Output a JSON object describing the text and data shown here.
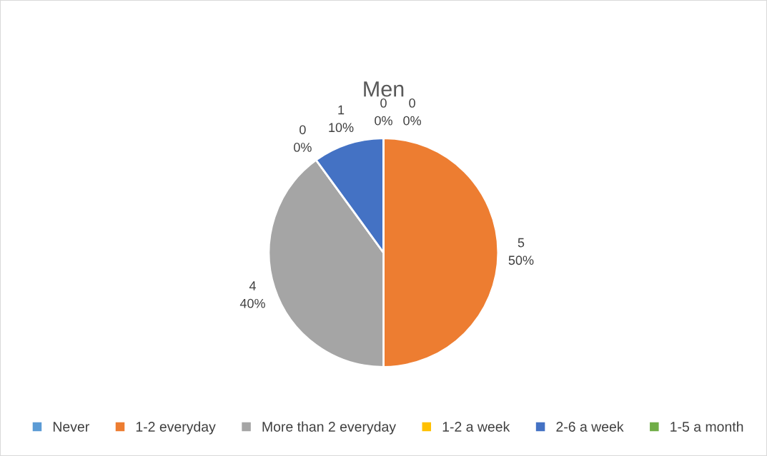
{
  "chart_data": {
    "type": "pie",
    "title": "Men",
    "categories": [
      "Never",
      "1-2 everyday",
      "More than 2 everyday",
      "1-2 a week",
      "2-6 a week",
      "1-5 a month"
    ],
    "values": [
      0,
      5,
      4,
      0,
      1,
      0
    ],
    "colors": [
      "#5b9bd5",
      "#ed7d31",
      "#a5a5a5",
      "#ffc000",
      "#4472c4",
      "#70ad47"
    ],
    "value_labels": [
      "0\n0%",
      "5\n50%",
      "4\n40%",
      "0\n0%",
      "1\n10%",
      "0\n0%"
    ],
    "legend": "bottom"
  }
}
